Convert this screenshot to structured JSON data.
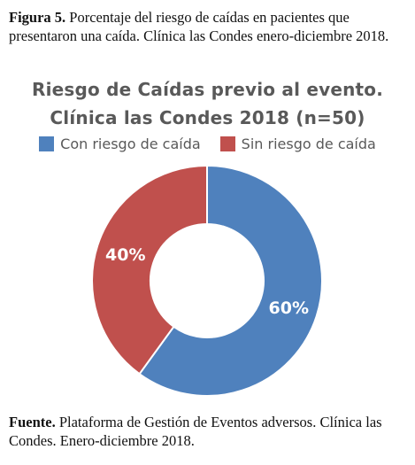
{
  "caption": {
    "label": "Figura 5.",
    "text": "Porcentaje del riesgo de caídas en pacientes que presentaron una caída. Clínica las Condes enero-diciembre 2018."
  },
  "chart_data": {
    "type": "pie",
    "donut": true,
    "title_line1": "Riesgo de Caídas previo al evento.",
    "title_line2": "Clínica las Condes 2018 (n=50)",
    "legend_position": "top",
    "categories": [
      "Con riesgo de caída",
      "Sin riesgo de caída"
    ],
    "values": [
      60,
      40
    ],
    "value_labels": [
      "60%",
      "40%"
    ],
    "colors": [
      "#4f81bd",
      "#c0504d"
    ]
  },
  "footer": {
    "label": "Fuente.",
    "text": "Plataforma de Gestión de Eventos adversos. Clínica las Condes. Enero-diciembre 2018."
  }
}
